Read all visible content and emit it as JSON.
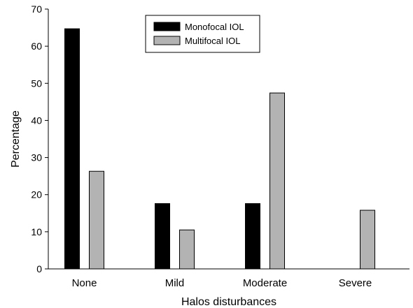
{
  "chart_data": {
    "type": "bar",
    "title": "",
    "xlabel": "Halos disturbances",
    "ylabel": "Percentage",
    "categories": [
      "None",
      "Mild",
      "Moderate",
      "Severe"
    ],
    "ylim": [
      0,
      70
    ],
    "yticks": [
      0,
      10,
      20,
      30,
      40,
      50,
      60,
      70
    ],
    "grid": false,
    "legend_position": "top-center",
    "series": [
      {
        "name": "Monofocal IOL",
        "color": "#000000",
        "values": [
          64.7,
          17.6,
          17.6,
          0
        ]
      },
      {
        "name": "Multifocal IOL",
        "color": "#b3b3b3",
        "values": [
          26.3,
          10.5,
          47.4,
          15.8
        ]
      }
    ]
  }
}
